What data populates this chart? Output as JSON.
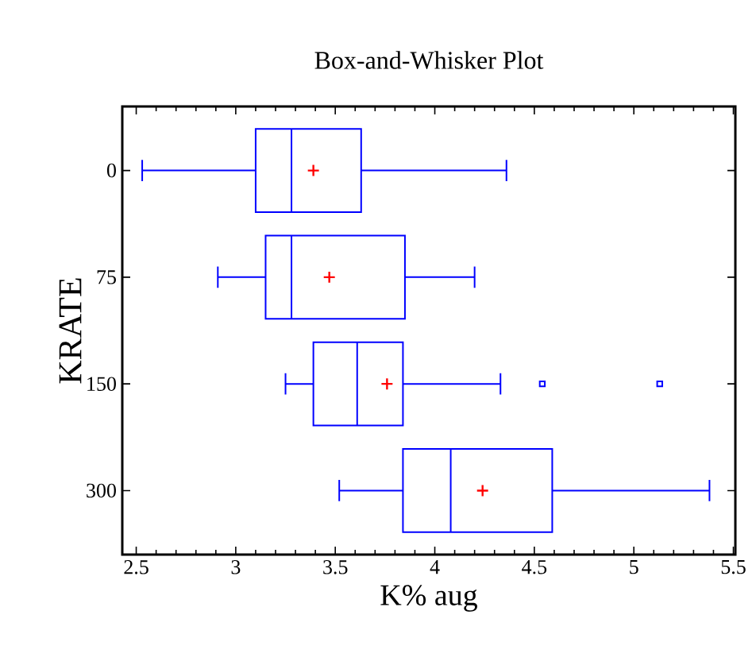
{
  "chart_data": {
    "type": "box",
    "title": "Box-and-Whisker Plot",
    "xlabel": "K% aug",
    "ylabel": "KRATE",
    "orientation": "horizontal",
    "color": "#0000ff",
    "marker": "square",
    "categories": [
      "0",
      "75",
      "150",
      "300"
    ],
    "boxes": [
      {
        "low": 2.53,
        "q1": 3.1,
        "median": 3.28,
        "q3": 3.63,
        "high": 4.36,
        "mean": 3.39
      },
      {
        "low": 2.91,
        "q1": 3.15,
        "median": 3.28,
        "q3": 3.85,
        "high": 4.2,
        "mean": 3.47
      },
      {
        "low": 3.25,
        "q1": 3.39,
        "median": 3.61,
        "q3": 3.84,
        "high": 4.33,
        "mean": 3.76,
        "outliers": [
          4.54,
          5.13
        ]
      },
      {
        "low": 3.52,
        "q1": 3.84,
        "median": 4.08,
        "q3": 4.59,
        "high": 5.38,
        "mean": 4.24
      }
    ],
    "xlim": [
      2.43,
      5.51
    ],
    "xticks": [
      2.5,
      3,
      3.5,
      4,
      4.5,
      5,
      5.5
    ]
  }
}
